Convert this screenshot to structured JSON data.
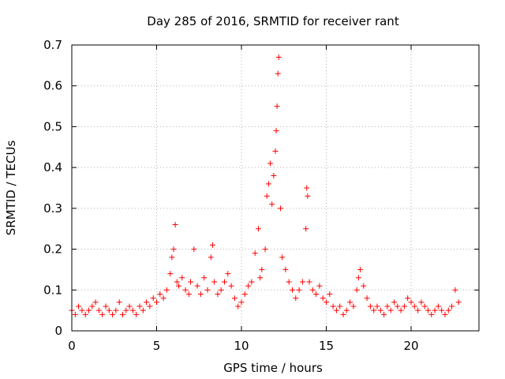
{
  "chart_data": {
    "type": "scatter",
    "title": "Day 285 of 2016, SRMTID for receiver rant",
    "xlabel": "GPS time / hours",
    "ylabel": "SRMTID / TECUs",
    "xlim": [
      0,
      24
    ],
    "ylim": [
      0,
      0.7
    ],
    "xticks": [
      0,
      5,
      10,
      15,
      20
    ],
    "yticks": [
      0,
      0.1,
      0.2,
      0.3,
      0.4,
      0.5,
      0.6,
      0.7
    ],
    "xtick_labels": [
      "0",
      "5",
      "10",
      "15",
      "20"
    ],
    "ytick_labels": [
      "0",
      "0.1",
      "0.2",
      "0.3",
      "0.4",
      "0.5",
      "0.6",
      "0.7"
    ],
    "grid": true,
    "marker": "plus",
    "series": [
      {
        "name": "SRMTID",
        "color": "#ff0000",
        "x": [
          0.0,
          0.2,
          0.4,
          0.6,
          0.8,
          1.0,
          1.2,
          1.4,
          1.6,
          1.8,
          2.0,
          2.2,
          2.4,
          2.6,
          2.8,
          3.0,
          3.2,
          3.4,
          3.6,
          3.8,
          4.0,
          4.2,
          4.4,
          4.6,
          4.8,
          5.0,
          5.2,
          5.4,
          5.6,
          5.8,
          5.9,
          6.0,
          6.1,
          6.2,
          6.3,
          6.5,
          6.7,
          6.9,
          7.0,
          7.2,
          7.4,
          7.6,
          7.8,
          8.0,
          8.2,
          8.3,
          8.4,
          8.6,
          8.8,
          9.0,
          9.2,
          9.4,
          9.6,
          9.8,
          10.0,
          10.2,
          10.4,
          10.6,
          10.8,
          11.0,
          11.1,
          11.2,
          11.4,
          11.5,
          11.6,
          11.7,
          11.8,
          11.9,
          12.0,
          12.05,
          12.1,
          12.15,
          12.2,
          12.3,
          12.4,
          12.6,
          12.8,
          13.0,
          13.2,
          13.4,
          13.6,
          13.8,
          13.85,
          13.9,
          14.0,
          14.2,
          14.4,
          14.6,
          14.8,
          15.0,
          15.2,
          15.4,
          15.6,
          15.8,
          16.0,
          16.2,
          16.4,
          16.6,
          16.8,
          16.9,
          17.0,
          17.2,
          17.4,
          17.6,
          17.8,
          18.0,
          18.2,
          18.4,
          18.6,
          18.8,
          19.0,
          19.2,
          19.4,
          19.6,
          19.8,
          20.0,
          20.2,
          20.4,
          20.6,
          20.8,
          21.0,
          21.2,
          21.4,
          21.6,
          21.8,
          22.0,
          22.2,
          22.4,
          22.6,
          22.8
        ],
        "y": [
          0.05,
          0.04,
          0.06,
          0.05,
          0.04,
          0.05,
          0.06,
          0.07,
          0.05,
          0.04,
          0.06,
          0.05,
          0.04,
          0.05,
          0.07,
          0.04,
          0.05,
          0.06,
          0.05,
          0.04,
          0.06,
          0.05,
          0.07,
          0.06,
          0.08,
          0.07,
          0.09,
          0.08,
          0.1,
          0.14,
          0.18,
          0.2,
          0.26,
          0.12,
          0.11,
          0.13,
          0.1,
          0.09,
          0.12,
          0.2,
          0.11,
          0.09,
          0.13,
          0.1,
          0.18,
          0.21,
          0.12,
          0.09,
          0.1,
          0.12,
          0.14,
          0.11,
          0.08,
          0.06,
          0.07,
          0.09,
          0.11,
          0.12,
          0.19,
          0.25,
          0.13,
          0.15,
          0.2,
          0.33,
          0.36,
          0.41,
          0.31,
          0.38,
          0.44,
          0.49,
          0.55,
          0.63,
          0.67,
          0.3,
          0.18,
          0.15,
          0.12,
          0.1,
          0.08,
          0.1,
          0.12,
          0.25,
          0.35,
          0.33,
          0.12,
          0.1,
          0.09,
          0.11,
          0.08,
          0.07,
          0.09,
          0.06,
          0.05,
          0.06,
          0.04,
          0.05,
          0.07,
          0.06,
          0.1,
          0.13,
          0.15,
          0.11,
          0.08,
          0.06,
          0.05,
          0.06,
          0.05,
          0.04,
          0.06,
          0.05,
          0.07,
          0.06,
          0.05,
          0.06,
          0.08,
          0.07,
          0.06,
          0.05,
          0.07,
          0.06,
          0.05,
          0.04,
          0.05,
          0.06,
          0.05,
          0.04,
          0.05,
          0.06,
          0.1,
          0.07
        ]
      }
    ]
  }
}
